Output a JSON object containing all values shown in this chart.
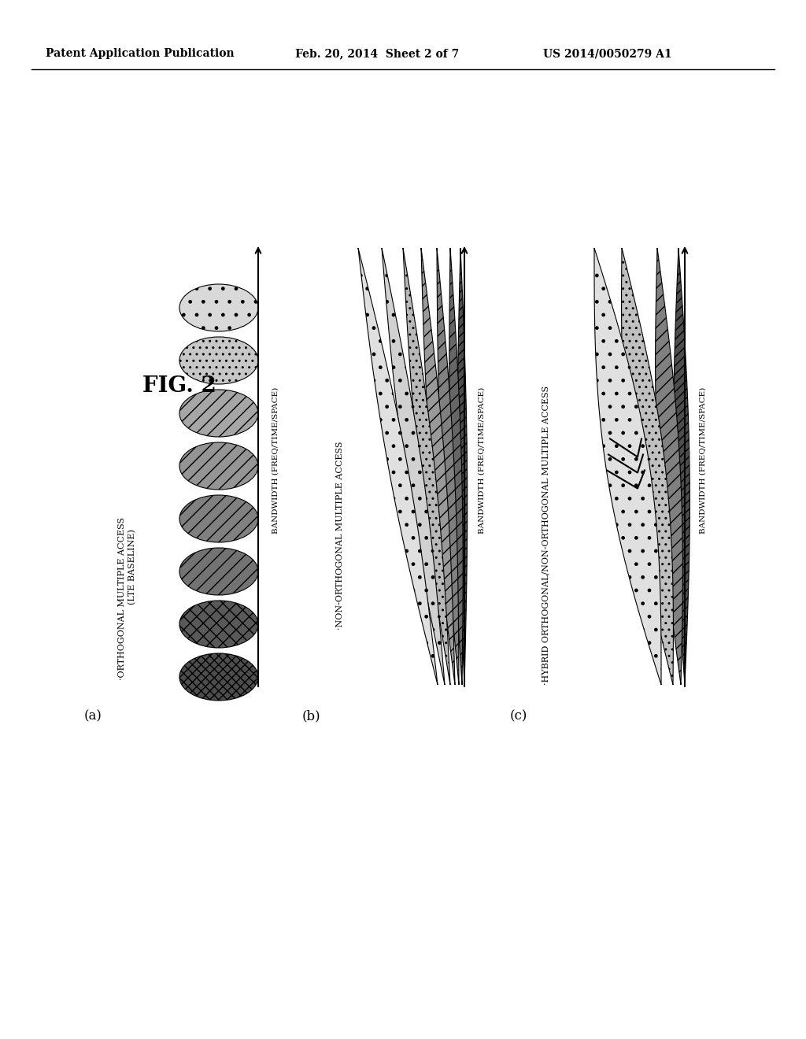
{
  "header_left": "Patent Application Publication",
  "header_mid": "Feb. 20, 2014  Sheet 2 of 7",
  "header_right": "US 2014/0050279 A1",
  "fig_label": "FIG. 2",
  "panel_a_label": "(a)",
  "panel_b_label": "(b)",
  "panel_c_label": "(c)",
  "panel_a_title1": "·ORTHOGONAL MULTIPLE ACCESS",
  "panel_a_title2": "(LTE BASELINE)",
  "panel_b_title": "·NON-ORTHOGONAL MULTIPLE ACCESS",
  "panel_c_title": "·HYBRID ORTHOGONAL/NON-ORTHOGONAL MULTIPLE ACCESS",
  "bandwidth_label": "BANDWIDTH (FREQ/TIME/SPACE)",
  "background_color": "#ffffff"
}
